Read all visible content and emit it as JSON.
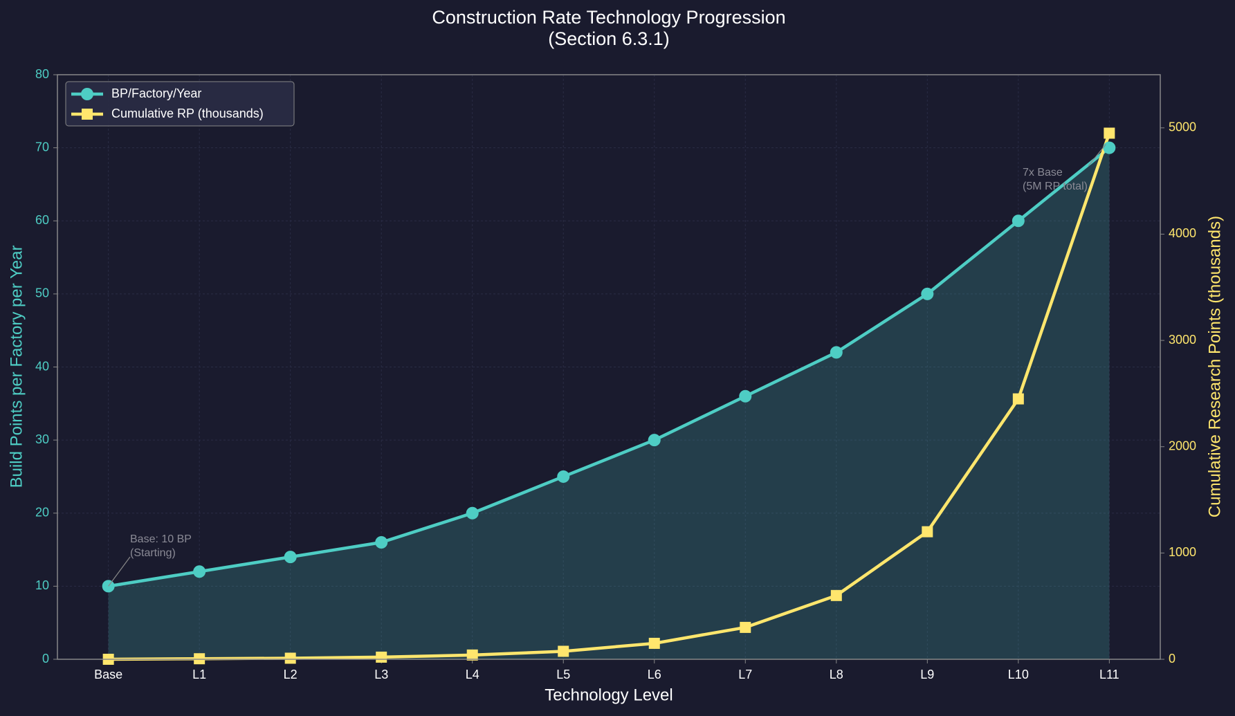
{
  "chart_data": {
    "type": "line",
    "title": [
      "Construction Rate Technology Progression",
      "(Section 6.3.1)"
    ],
    "x_label": "Technology Level",
    "y_label": "Build Points per Factory per Year",
    "y2_label": "Cumulative Research Points (thousands)",
    "categories": [
      "Base",
      "L1",
      "L2",
      "L3",
      "L4",
      "L5",
      "L6",
      "L7",
      "L8",
      "L9",
      "L10",
      "L11"
    ],
    "series": [
      {
        "name": "BP/Factory/Year",
        "color": "#4ecdc4",
        "marker": "circle",
        "fill": true,
        "values": [
          10,
          12,
          14,
          16,
          20,
          25,
          30,
          36,
          42,
          50,
          60,
          70
        ]
      },
      {
        "name": "Cumulative RP (thousands)",
        "color": "#ffe66d",
        "marker": "square",
        "axis": "y2",
        "values": [
          0,
          5,
          10,
          20,
          40,
          75,
          150,
          300,
          600,
          1200,
          2450,
          4950
        ]
      }
    ],
    "ylim": [
      0,
      80
    ],
    "yticks": [
      0,
      10,
      20,
      30,
      40,
      50,
      60,
      70,
      80
    ],
    "y2lim": [
      0,
      5500
    ],
    "y2ticks": [
      0,
      1000,
      2000,
      3000,
      4000,
      5000
    ],
    "grid": true,
    "legend": "upper left",
    "annotations": [
      {
        "lines": [
          "Base: 10 BP",
          "(Starting)"
        ]
      },
      {
        "lines": [
          "7x Base",
          "(5M RP total)"
        ]
      }
    ]
  }
}
